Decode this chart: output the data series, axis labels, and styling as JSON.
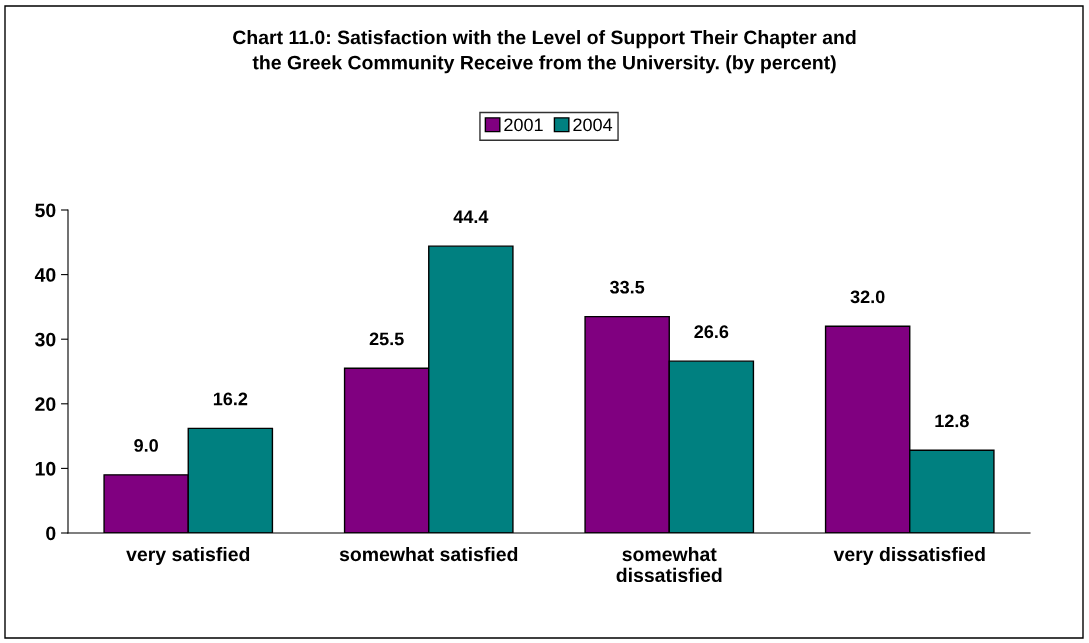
{
  "chart_data": {
    "type": "bar",
    "title": "Chart 11.0: Satisfaction with the Level of Support Their Chapter and\nthe Greek Community Receive from the University. (by percent)",
    "categories": [
      "very satisfied",
      "somewhat satisfied",
      "somewhat dissatisfied",
      "very dissatisfied"
    ],
    "series": [
      {
        "name": "2001",
        "color": "#800080",
        "values": [
          9.0,
          25.5,
          33.5,
          32.0
        ],
        "value_labels": [
          "9.0",
          "25.5",
          "33.5",
          "32.0"
        ]
      },
      {
        "name": "2004",
        "color": "#008080",
        "values": [
          16.2,
          44.4,
          26.6,
          12.8
        ],
        "value_labels": [
          "16.2",
          "44.4",
          "26.6",
          "12.8"
        ]
      }
    ],
    "ylim": [
      0,
      50
    ],
    "yticks": [
      0,
      10,
      20,
      30,
      40,
      50
    ],
    "grid": false,
    "legend": "top"
  }
}
